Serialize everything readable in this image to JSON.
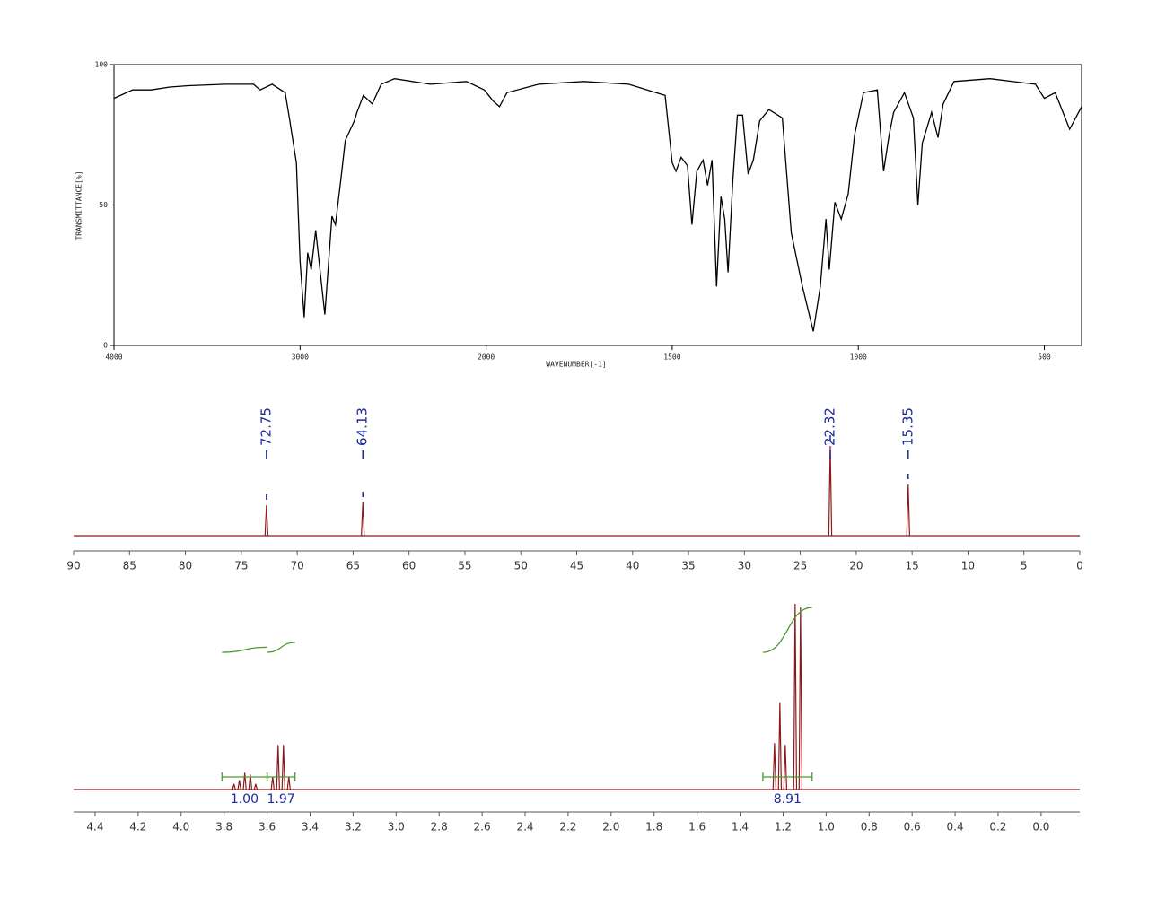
{
  "chart_data": [
    {
      "type": "line",
      "xlabel": "WAVENUMBER[-1]",
      "ylabel": "TRANSMITTANCE[%]",
      "color": "#000000",
      "x": [
        4000,
        3900,
        3800,
        3700,
        3600,
        3400,
        3250,
        3215,
        3150,
        3080,
        3055,
        3020,
        3000,
        2978,
        2959,
        2940,
        2916,
        2867,
        2829,
        2810,
        2781,
        2757,
        2708,
        2694,
        2660,
        2612,
        2564,
        2492,
        2299,
        2106,
        2010,
        1981,
        1964,
        1944,
        1859,
        1738,
        1617,
        1519,
        1500,
        1490,
        1476,
        1459,
        1447,
        1434,
        1417,
        1405,
        1393,
        1381,
        1369,
        1359,
        1350,
        1337,
        1325,
        1311,
        1296,
        1282,
        1265,
        1240,
        1204,
        1180,
        1150,
        1121,
        1102,
        1087,
        1078,
        1063,
        1046,
        1027,
        1010,
        986,
        949,
        932,
        917,
        905,
        876,
        852,
        840,
        828,
        803,
        786,
        772,
        743,
        646,
        524,
        500,
        471,
        432,
        400
      ],
      "values": [
        88,
        91,
        91,
        92,
        92.5,
        93,
        93,
        91,
        93,
        90,
        80,
        65,
        30,
        10,
        33,
        27,
        41,
        11,
        46,
        43,
        59,
        73,
        80,
        83,
        89,
        86,
        93,
        95,
        93,
        94,
        91,
        87,
        85,
        90,
        93,
        94,
        93,
        89,
        65,
        62,
        67,
        64,
        43,
        62,
        66,
        57,
        66,
        21,
        53,
        45,
        26,
        59,
        82,
        82,
        61,
        66,
        80,
        84,
        81,
        40,
        21,
        5,
        21,
        45,
        27,
        51,
        45,
        54,
        75,
        90,
        91,
        62,
        75,
        83,
        90,
        81,
        50,
        72,
        83,
        74,
        86,
        94,
        95,
        93,
        88,
        90,
        77,
        85
      ],
      "xlim": [
        4000,
        400
      ],
      "x_scale_break": 2000,
      "x_scale_ratio": 2,
      "xticks": [
        4000,
        3000,
        2000,
        1500,
        1000,
        500
      ],
      "ylim": [
        0,
        100
      ],
      "yticks": [
        0,
        50,
        100
      ]
    },
    {
      "type": "spectrum",
      "color": "#8b1a1a",
      "label_color": "#1a2a9c",
      "label_peaks": true,
      "x": [
        72.75,
        64.13,
        22.32,
        15.35
      ],
      "values": [
        34,
        37,
        100,
        57
      ],
      "xlim": [
        90,
        0
      ],
      "ylim": [
        0,
        100
      ],
      "xticks": [
        90,
        85,
        80,
        75,
        70,
        65,
        60,
        55,
        50,
        45,
        40,
        35,
        30,
        25,
        20,
        15,
        10,
        5,
        0
      ]
    },
    {
      "type": "spectrum",
      "color": "#8b1a1a",
      "label_color": "#1a2a9c",
      "label_peaks": false,
      "integral_color": "#4a9a2a",
      "x": [
        3.754,
        3.729,
        3.704,
        3.678,
        3.653,
        3.574,
        3.549,
        3.524,
        3.499,
        1.24,
        1.215,
        1.19,
        1.144,
        1.119
      ],
      "values": [
        3,
        5,
        9,
        8,
        3,
        7,
        24,
        24,
        7,
        25,
        47,
        24,
        100,
        98
      ],
      "xlim": [
        4.5,
        -0.18
      ],
      "ylim": [
        0,
        100
      ],
      "xticks": [
        4.4,
        4.2,
        {
          "value": 4,
          "label": "4.0"
        },
        3.8,
        3.6,
        3.4,
        3.2,
        {
          "value": 3,
          "label": "3.0"
        },
        2.8,
        2.6,
        2.4,
        2.2,
        {
          "value": 2,
          "label": "2.0"
        },
        1.8,
        1.6,
        1.4,
        1.2,
        {
          "value": 1,
          "label": "1.0"
        },
        0.8,
        0.6,
        0.4,
        0.2,
        {
          "value": 0,
          "label": "0.0"
        }
      ],
      "integrals": {
        "ranges": [
          [
            3.81,
            3.6
          ],
          [
            3.6,
            3.47
          ],
          [
            1.294,
            1.065
          ]
        ],
        "values": [
          1,
          1.97,
          8.91
        ],
        "value_labels": [
          "1.00",
          "1.97",
          "8.91"
        ]
      }
    }
  ]
}
